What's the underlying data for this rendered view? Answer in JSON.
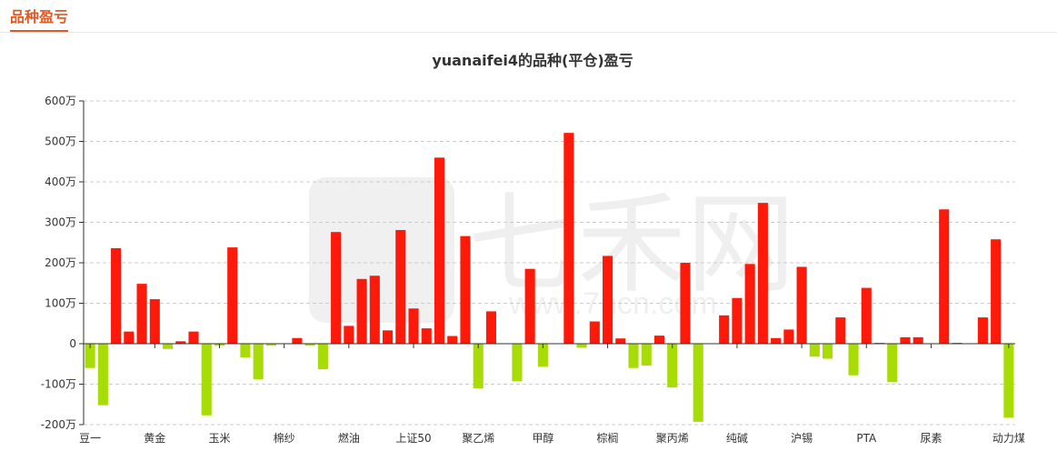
{
  "section": {
    "tab_label": "品种盈亏"
  },
  "colors": {
    "positive": "#fe1a0a",
    "negative": "#a8dc06",
    "accent": "#e05a25"
  },
  "watermark": {
    "brand": "七禾网",
    "url": "www.7hcn.com"
  },
  "chart_data": {
    "type": "bar",
    "title": "yuanaifei4的品种(平仓)盈亏",
    "xlabel": "",
    "ylabel": "",
    "ylim": [
      -200,
      600
    ],
    "yticks": [
      -200,
      -100,
      0,
      100,
      200,
      300,
      400,
      500,
      600
    ],
    "ytick_labels": [
      "-200万",
      "-100万",
      "0",
      "100万",
      "200万",
      "300万",
      "400万",
      "500万",
      "600万"
    ],
    "unit": "万",
    "grid": true,
    "x_tick_labels": [
      "豆一",
      "黄金",
      "玉米",
      "棉纱",
      "燃油",
      "上证50",
      "聚乙烯",
      "甲醇",
      "棕榈",
      "聚丙烯",
      "纯碱",
      "沪锡",
      "PTA",
      "尿素",
      "动力煤"
    ],
    "labeled_bar_indices": [
      0,
      5,
      10,
      15,
      20,
      25,
      30,
      35,
      40,
      45,
      50,
      55,
      60,
      65,
      71
    ],
    "values": [
      -60,
      -152,
      236,
      30,
      148,
      110,
      -13,
      6,
      30,
      -177,
      -5,
      238,
      -34,
      -88,
      -5,
      0,
      14,
      -5,
      -63,
      276,
      44,
      160,
      168,
      33,
      281,
      87,
      38,
      460,
      19,
      266,
      -110,
      80,
      0,
      -93,
      185,
      -57,
      0,
      521,
      -10,
      55,
      217,
      13,
      -60,
      -54,
      20,
      -108,
      200,
      -193,
      0,
      70,
      113,
      197,
      348,
      14,
      35,
      190,
      -32,
      -37,
      65,
      -78,
      138,
      2,
      -95,
      16,
      16,
      0,
      332,
      2,
      0,
      65,
      258,
      -183
    ]
  }
}
